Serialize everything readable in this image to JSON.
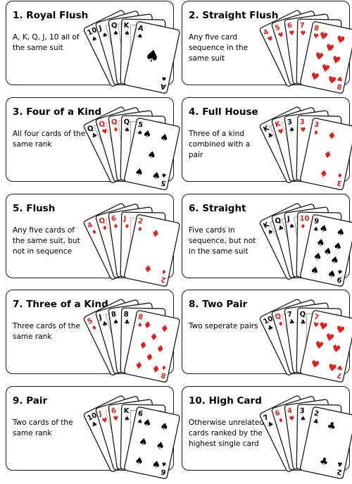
{
  "hands": [
    {
      "title": "1. Royal Flush",
      "description": "A, K, Q, J, 10 all of the same suit",
      "front_suit": "♠",
      "front_rank": "A",
      "cards": [
        {
          "rank": "10",
          "suit": "♠",
          "color": "#000000"
        },
        {
          "rank": "J",
          "suit": "♠",
          "color": "#000000"
        },
        {
          "rank": "Q",
          "suit": "♠",
          "color": "#000000"
        },
        {
          "rank": "K",
          "suit": "♠",
          "color": "#000000"
        },
        {
          "rank": "A",
          "suit": "♠",
          "color": "#000000"
        }
      ]
    },
    {
      "title": "2. Straight Flush",
      "description": "Any five card sequence in the same suit",
      "front_suit": "♥",
      "front_rank": "8",
      "cards": [
        {
          "rank": "4",
          "suit": "♥",
          "color": "#e0201b"
        },
        {
          "rank": "5",
          "suit": "♥",
          "color": "#e0201b"
        },
        {
          "rank": "6",
          "suit": "♥",
          "color": "#e0201b"
        },
        {
          "rank": "7",
          "suit": "♥",
          "color": "#e0201b"
        },
        {
          "rank": "8",
          "suit": "♥",
          "color": "#e0201b"
        }
      ]
    },
    {
      "title": "3. Four of a Kind",
      "description": "All four cards of the same rank",
      "front_suit": "♠",
      "front_rank": "5",
      "cards": [
        {
          "rank": "Q",
          "suit": "♣",
          "color": "#000000"
        },
        {
          "rank": "Q",
          "suit": "♥",
          "color": "#e0201b"
        },
        {
          "rank": "Q",
          "suit": "♦",
          "color": "#e0201b"
        },
        {
          "rank": "Q",
          "suit": "♠",
          "color": "#000000"
        },
        {
          "rank": "5",
          "suit": "♠",
          "color": "#000000"
        }
      ]
    },
    {
      "title": "4. Full House",
      "description": "Three of a kind combined with a pair",
      "front_suit": "♦",
      "front_rank": "3",
      "cards": [
        {
          "rank": "K",
          "suit": "♣",
          "color": "#000000"
        },
        {
          "rank": "K",
          "suit": "♥",
          "color": "#e0201b"
        },
        {
          "rank": "3",
          "suit": "♠",
          "color": "#000000"
        },
        {
          "rank": "3",
          "suit": "♥",
          "color": "#e0201b"
        },
        {
          "rank": "3",
          "suit": "♦",
          "color": "#e0201b"
        }
      ]
    },
    {
      "title": "5. Flush",
      "description": "Any five cards of the same suit, but not in sequence",
      "front_suit": "♦",
      "front_rank": "2",
      "cards": [
        {
          "rank": "4",
          "suit": "♦",
          "color": "#e0201b"
        },
        {
          "rank": "Q",
          "suit": "♦",
          "color": "#e0201b"
        },
        {
          "rank": "6",
          "suit": "♦",
          "color": "#e0201b"
        },
        {
          "rank": "J",
          "suit": "♦",
          "color": "#e0201b"
        },
        {
          "rank": "2",
          "suit": "♦",
          "color": "#e0201b"
        }
      ]
    },
    {
      "title": "6. Straight",
      "description": "Five cards in sequence, but not in the same suit",
      "front_suit": "♠",
      "front_rank": "9",
      "cards": [
        {
          "rank": "K",
          "suit": "♠",
          "color": "#000000"
        },
        {
          "rank": "Q",
          "suit": "♣",
          "color": "#000000"
        },
        {
          "rank": "J",
          "suit": "♠",
          "color": "#000000"
        },
        {
          "rank": "10",
          "suit": "♦",
          "color": "#e0201b"
        },
        {
          "rank": "9",
          "suit": "♠",
          "color": "#000000"
        }
      ]
    },
    {
      "title": "7. Three of a Kind",
      "description": "Three cards of the same rank",
      "front_suit": "♦",
      "front_rank": "8",
      "cards": [
        {
          "rank": "5",
          "suit": "♦",
          "color": "#e0201b"
        },
        {
          "rank": "J",
          "suit": "♣",
          "color": "#000000"
        },
        {
          "rank": "8",
          "suit": "♠",
          "color": "#000000"
        },
        {
          "rank": "8",
          "suit": "♣",
          "color": "#000000"
        },
        {
          "rank": "8",
          "suit": "♦",
          "color": "#e0201b"
        }
      ]
    },
    {
      "title": "8. Two Pair",
      "description": "Two seperate pairs",
      "front_suit": "♥",
      "front_rank": "7",
      "cards": [
        {
          "rank": "10",
          "suit": "♣",
          "color": "#000000"
        },
        {
          "rank": "Q",
          "suit": "♦",
          "color": "#e0201b"
        },
        {
          "rank": "7",
          "suit": "♣",
          "color": "#000000"
        },
        {
          "rank": "Q",
          "suit": "♣",
          "color": "#000000"
        },
        {
          "rank": "7",
          "suit": "♥",
          "color": "#e0201b"
        }
      ]
    },
    {
      "title": "9. Pair",
      "description": "Two cards of the same rank",
      "front_suit": "♠",
      "front_rank": "6",
      "cards": [
        {
          "rank": "10",
          "suit": "♣",
          "color": "#000000"
        },
        {
          "rank": "J",
          "suit": "♥",
          "color": "#e0201b"
        },
        {
          "rank": "6",
          "suit": "♥",
          "color": "#e0201b"
        },
        {
          "rank": "K",
          "suit": "♠",
          "color": "#000000"
        },
        {
          "rank": "6",
          "suit": "♠",
          "color": "#000000"
        }
      ]
    },
    {
      "title": "10. High Card",
      "description": "Otherwise unrelated cards ranked by the highest single card",
      "front_suit": "♣",
      "front_rank": "2",
      "cards": [
        {
          "rank": "7",
          "suit": "♣",
          "color": "#000000"
        },
        {
          "rank": "6",
          "suit": "♦",
          "color": "#e0201b"
        },
        {
          "rank": "4",
          "suit": "♥",
          "color": "#e0201b"
        },
        {
          "rank": "3",
          "suit": "♠",
          "color": "#000000"
        },
        {
          "rank": "2",
          "suit": "♣",
          "color": "#000000"
        }
      ]
    }
  ]
}
